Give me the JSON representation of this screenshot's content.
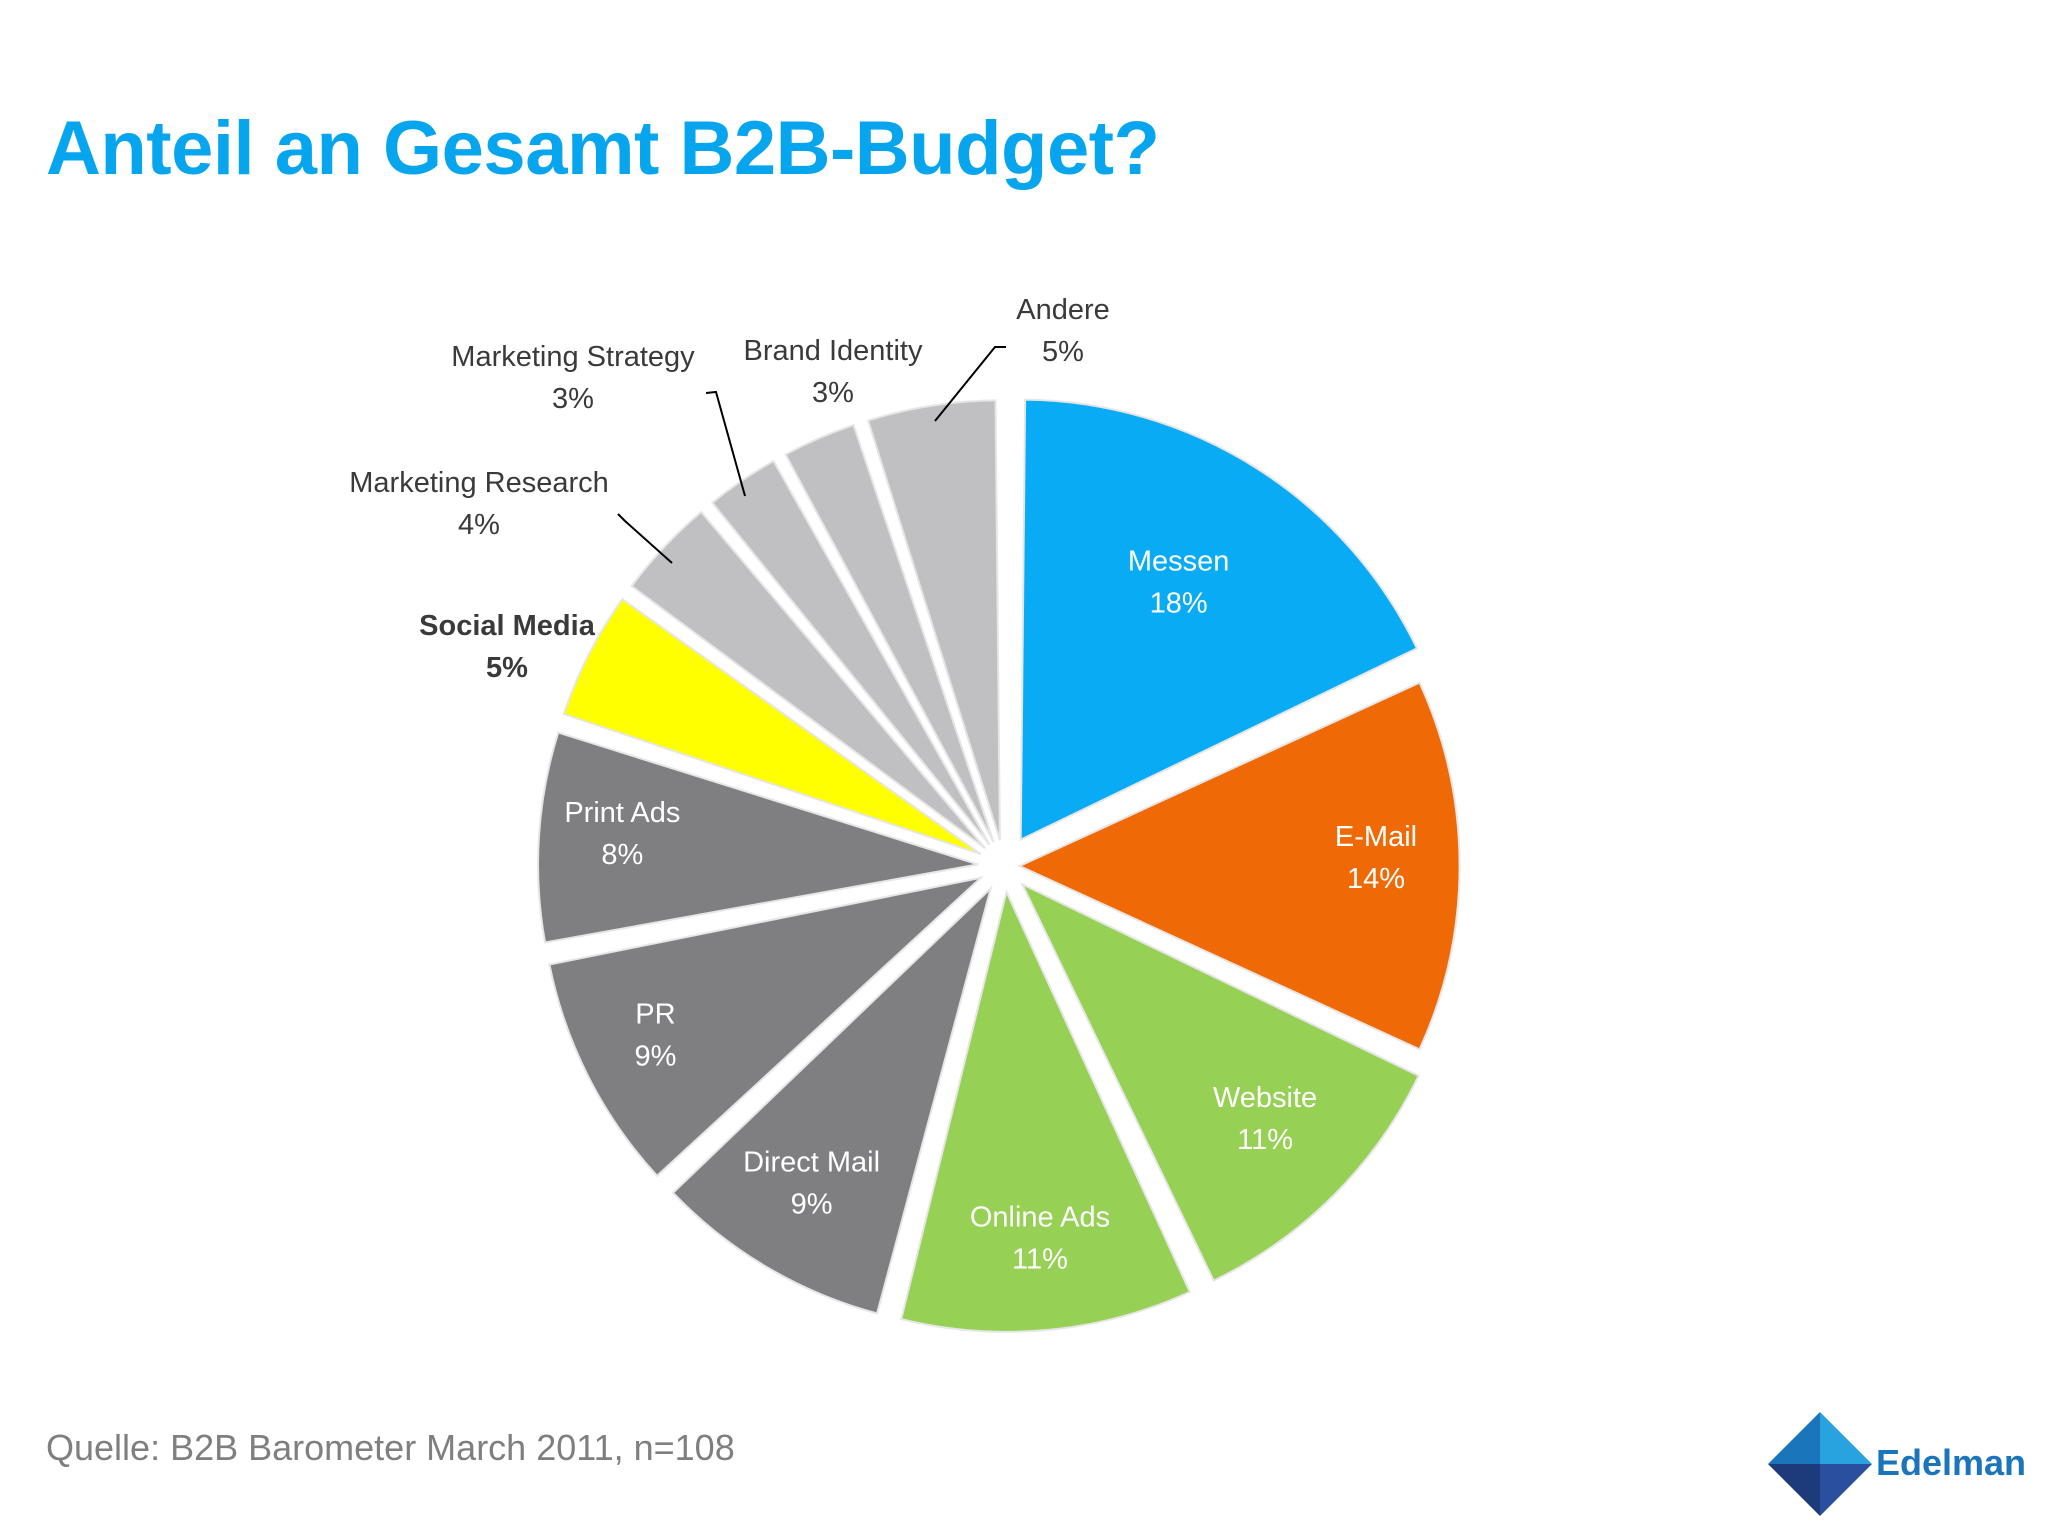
{
  "slide": {
    "title": "Anteil an Gesamt B2B-Budget?",
    "source": "Quelle: B2B Barometer March 2011, n=108",
    "logo_text": "Edelman"
  },
  "colors": {
    "title": "#08a5ef",
    "messen": "#0aabf5",
    "email": "#ef6a06",
    "green": "#96d054",
    "dark_gray": "#7f7e81",
    "yellow": "#ffff00",
    "light_gray": "#c0bfc2",
    "source_text": "#7f7f7f",
    "logo_blue": "#1b75bb"
  },
  "chart_data": {
    "type": "pie",
    "title": "Anteil an Gesamt B2B-Budget?",
    "unit": "%",
    "slices": [
      {
        "label": "Messen",
        "value": 18,
        "display": "18%",
        "color": "#0aabf5",
        "label_color": "#ffffff",
        "bold": false
      },
      {
        "label": "E-Mail",
        "value": 14,
        "display": "14%",
        "color": "#ef6a06",
        "label_color": "#ffffff",
        "bold": false
      },
      {
        "label": "Website",
        "value": 11,
        "display": "11%",
        "color": "#96d054",
        "label_color": "#ffffff",
        "bold": false
      },
      {
        "label": "Online Ads",
        "value": 11,
        "display": "11%",
        "color": "#96d054",
        "label_color": "#ffffff",
        "bold": false
      },
      {
        "label": "Direct Mail",
        "value": 9,
        "display": "9%",
        "color": "#7f7e81",
        "label_color": "#ffffff",
        "bold": false
      },
      {
        "label": "PR",
        "value": 9,
        "display": "9%",
        "color": "#7f7e81",
        "label_color": "#ffffff",
        "bold": false
      },
      {
        "label": "Print Ads",
        "value": 8,
        "display": "8%",
        "color": "#7f7e81",
        "label_color": "#ffffff",
        "bold": false
      },
      {
        "label": "Social Media",
        "value": 5,
        "display": "5%",
        "color": "#ffff00",
        "label_color": "#3a3a3a",
        "bold": true
      },
      {
        "label": "Marketing Research",
        "value": 4,
        "display": "4%",
        "color": "#c0bfc2",
        "label_color": "#3a3a3a",
        "bold": false
      },
      {
        "label": "Marketing Strategy",
        "value": 3,
        "display": "3%",
        "color": "#c0bfc2",
        "label_color": "#3a3a3a",
        "bold": false
      },
      {
        "label": "Brand Identity",
        "value": 3,
        "display": "3%",
        "color": "#c0bfc2",
        "label_color": "#3a3a3a",
        "bold": false
      },
      {
        "label": "Andere",
        "value": 5,
        "display": "5%",
        "color": "#c0bfc2",
        "label_color": "#3a3a3a",
        "bold": false
      }
    ]
  }
}
